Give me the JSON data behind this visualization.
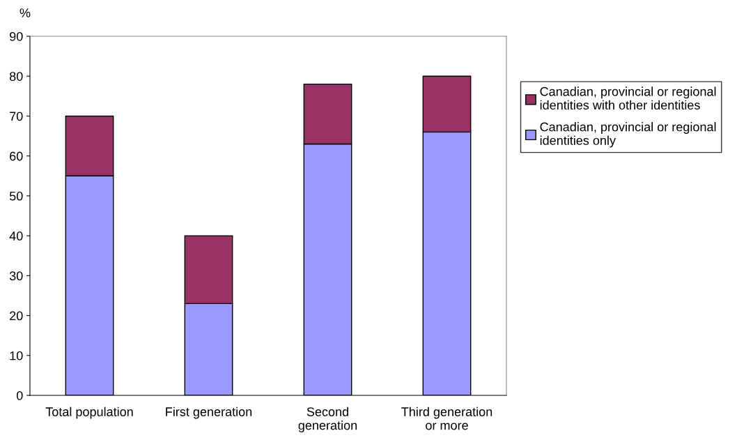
{
  "chart_data": {
    "type": "bar",
    "stacked": true,
    "ylabel": "%",
    "categories": [
      "Total population",
      "First generation",
      "Second\ngeneration",
      "Third generation\nor more"
    ],
    "series": [
      {
        "name": "Canadian, provincial or regional\nidentities only",
        "color": "#9999ff",
        "values": [
          55,
          23,
          63,
          66
        ]
      },
      {
        "name": "Canadian, provincial or regional\nidentities with other identities",
        "color": "#993366",
        "values": [
          15,
          17,
          15,
          14
        ]
      }
    ],
    "ylim": [
      0,
      90
    ],
    "yticks": [
      0,
      10,
      20,
      30,
      40,
      50,
      60,
      70,
      80,
      90
    ],
    "grid": false,
    "legend": "right"
  }
}
